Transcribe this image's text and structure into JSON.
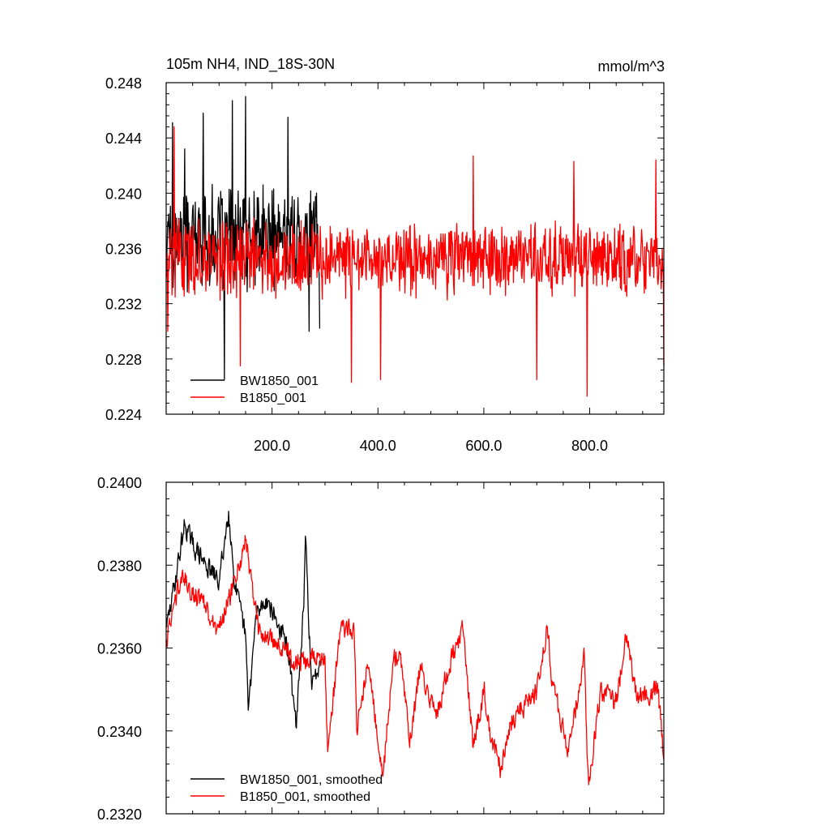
{
  "chart_data": [
    {
      "type": "line",
      "title": "105m NH4, IND_18S-30N",
      "units": "mmol/m^3",
      "xlim": [
        0,
        940
      ],
      "ylim": [
        0.224,
        0.248
      ],
      "x_ticks": [
        200,
        400,
        600,
        800
      ],
      "x_tick_labels": [
        "200.0",
        "400.0",
        "600.0",
        "800.0"
      ],
      "y_ticks": [
        0.224,
        0.228,
        0.232,
        0.236,
        0.24,
        0.244,
        0.248
      ],
      "y_tick_labels": [
        "0.224",
        "0.228",
        "0.232",
        "0.236",
        "0.240",
        "0.244",
        "0.248"
      ],
      "grid": false,
      "legend_position": "bottom-left",
      "series": [
        {
          "name": "BW1850_001",
          "color": "#000000",
          "x_start": 1,
          "x_end": 290,
          "mean": 0.2368,
          "amplitude": 0.0042,
          "key_points": [
            [
              5,
              0.2385
            ],
            [
              12,
              0.2451
            ],
            [
              35,
              0.2432
            ],
            [
              70,
              0.2458
            ],
            [
              110,
              0.2265
            ],
            [
              125,
              0.2467
            ],
            [
              150,
              0.247
            ],
            [
              165,
              0.2348
            ],
            [
              230,
              0.2455
            ],
            [
              270,
              0.23
            ],
            [
              290,
              0.2302
            ]
          ]
        },
        {
          "name": "B1850_001",
          "color": "#ff0000",
          "x_start": 1,
          "x_end": 940,
          "mean": 0.2353,
          "amplitude": 0.0032,
          "key_points": [
            [
              3,
              0.23
            ],
            [
              15,
              0.2448
            ],
            [
              140,
              0.2275
            ],
            [
              350,
              0.2263
            ],
            [
              405,
              0.2265
            ],
            [
              580,
              0.2427
            ],
            [
              700,
              0.2265
            ],
            [
              770,
              0.2423
            ],
            [
              795,
              0.2253
            ],
            [
              925,
              0.2424
            ],
            [
              940,
              0.2275
            ]
          ]
        }
      ]
    },
    {
      "type": "line",
      "xlim": [
        0,
        940
      ],
      "ylim": [
        0.232,
        0.24
      ],
      "y_ticks": [
        0.232,
        0.234,
        0.236,
        0.238,
        0.24
      ],
      "y_tick_labels": [
        "0.2320",
        "0.2340",
        "0.2360",
        "0.2380",
        "0.2400"
      ],
      "grid": false,
      "legend_position": "bottom-left",
      "series": [
        {
          "name": "BW1850_001, smoothed",
          "color": "#000000",
          "x_start": 1,
          "x_end": 290,
          "key_points": [
            [
              1,
              0.2365
            ],
            [
              10,
              0.2371
            ],
            [
              35,
              0.239
            ],
            [
              50,
              0.2385
            ],
            [
              75,
              0.238
            ],
            [
              100,
              0.2376
            ],
            [
              118,
              0.2393
            ],
            [
              130,
              0.2375
            ],
            [
              150,
              0.2363
            ],
            [
              155,
              0.2345
            ],
            [
              170,
              0.2368
            ],
            [
              190,
              0.2372
            ],
            [
              230,
              0.236
            ],
            [
              245,
              0.2341
            ],
            [
              260,
              0.237
            ],
            [
              263,
              0.2387
            ],
            [
              275,
              0.235
            ],
            [
              290,
              0.2357
            ]
          ]
        },
        {
          "name": "B1850_001, smoothed",
          "color": "#ff0000",
          "x_start": 1,
          "x_end": 940,
          "key_points": [
            [
              1,
              0.2362
            ],
            [
              30,
              0.2378
            ],
            [
              50,
              0.2373
            ],
            [
              70,
              0.2371
            ],
            [
              90,
              0.2365
            ],
            [
              100,
              0.2365
            ],
            [
              120,
              0.2372
            ],
            [
              150,
              0.2386
            ],
            [
              175,
              0.2364
            ],
            [
              220,
              0.236
            ],
            [
              250,
              0.2356
            ],
            [
              300,
              0.2358
            ],
            [
              305,
              0.2335
            ],
            [
              330,
              0.2365
            ],
            [
              355,
              0.2364
            ],
            [
              360,
              0.234
            ],
            [
              380,
              0.2356
            ],
            [
              410,
              0.233
            ],
            [
              430,
              0.2358
            ],
            [
              445,
              0.2356
            ],
            [
              460,
              0.2336
            ],
            [
              480,
              0.2356
            ],
            [
              510,
              0.2343
            ],
            [
              530,
              0.2354
            ],
            [
              560,
              0.2365
            ],
            [
              580,
              0.2336
            ],
            [
              600,
              0.235
            ],
            [
              610,
              0.234
            ],
            [
              630,
              0.2331
            ],
            [
              650,
              0.2342
            ],
            [
              700,
              0.235
            ],
            [
              720,
              0.2365
            ],
            [
              730,
              0.2351
            ],
            [
              760,
              0.2335
            ],
            [
              790,
              0.2358
            ],
            [
              795,
              0.2334
            ],
            [
              798,
              0.2327
            ],
            [
              820,
              0.235
            ],
            [
              850,
              0.2347
            ],
            [
              870,
              0.2363
            ],
            [
              890,
              0.2348
            ],
            [
              930,
              0.235
            ],
            [
              940,
              0.2333
            ]
          ]
        }
      ]
    }
  ]
}
